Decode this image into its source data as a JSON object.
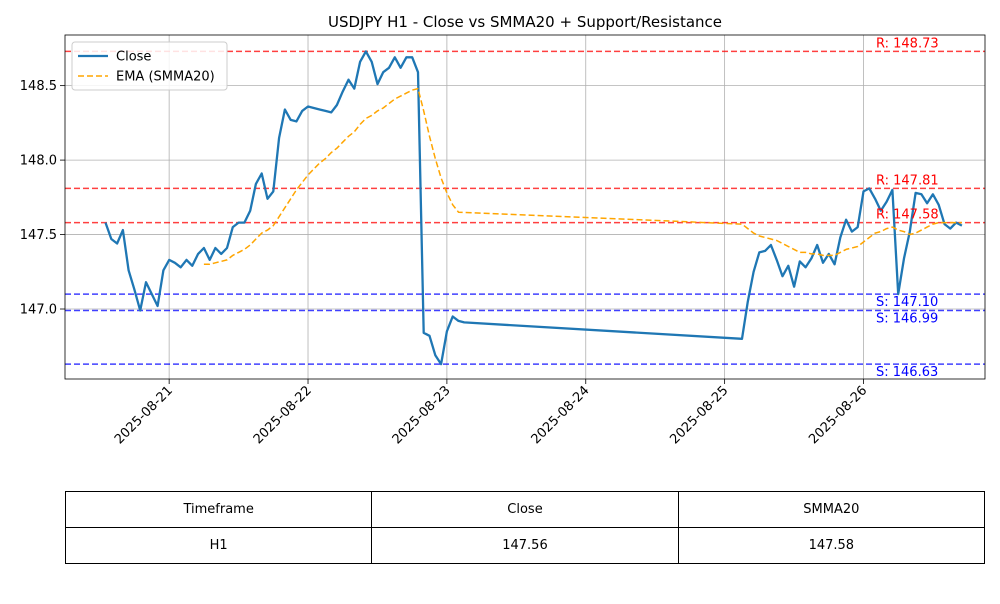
{
  "chart_data": {
    "type": "line",
    "title": "USDJPY H1 - Close vs SMMA20 + Support/Resistance",
    "xlabel": "",
    "ylabel": "",
    "x_ticks": [
      "2025-08-21",
      "2025-08-22",
      "2025-08-23",
      "2025-08-24",
      "2025-08-25",
      "2025-08-26"
    ],
    "y_ticks": [
      "147.0",
      "147.5",
      "148.0",
      "148.5"
    ],
    "xlim": [
      "2025-08-20 06:00",
      "2025-08-26 21:00"
    ],
    "ylim": [
      146.53,
      148.84
    ],
    "grid": true,
    "legend_position": "upper-left",
    "series": [
      {
        "name": "Close",
        "color": "#1f77b4",
        "style": "solid",
        "points": [
          [
            "2025-08-20 13:00",
            147.58
          ],
          [
            "2025-08-20 14:00",
            147.47
          ],
          [
            "2025-08-20 15:00",
            147.44
          ],
          [
            "2025-08-20 16:00",
            147.53
          ],
          [
            "2025-08-20 17:00",
            147.26
          ],
          [
            "2025-08-20 18:00",
            147.13
          ],
          [
            "2025-08-20 19:00",
            146.99
          ],
          [
            "2025-08-20 20:00",
            147.18
          ],
          [
            "2025-08-20 21:00",
            147.1
          ],
          [
            "2025-08-20 22:00",
            147.02
          ],
          [
            "2025-08-20 23:00",
            147.26
          ],
          [
            "2025-08-21 00:00",
            147.33
          ],
          [
            "2025-08-21 01:00",
            147.31
          ],
          [
            "2025-08-21 02:00",
            147.28
          ],
          [
            "2025-08-21 03:00",
            147.33
          ],
          [
            "2025-08-21 04:00",
            147.29
          ],
          [
            "2025-08-21 05:00",
            147.37
          ],
          [
            "2025-08-21 06:00",
            147.41
          ],
          [
            "2025-08-21 07:00",
            147.33
          ],
          [
            "2025-08-21 08:00",
            147.41
          ],
          [
            "2025-08-21 09:00",
            147.37
          ],
          [
            "2025-08-21 10:00",
            147.41
          ],
          [
            "2025-08-21 11:00",
            147.55
          ],
          [
            "2025-08-21 12:00",
            147.58
          ],
          [
            "2025-08-21 13:00",
            147.58
          ],
          [
            "2025-08-21 14:00",
            147.66
          ],
          [
            "2025-08-21 15:00",
            147.84
          ],
          [
            "2025-08-21 16:00",
            147.91
          ],
          [
            "2025-08-21 17:00",
            147.74
          ],
          [
            "2025-08-21 18:00",
            147.79
          ],
          [
            "2025-08-21 19:00",
            148.15
          ],
          [
            "2025-08-21 20:00",
            148.34
          ],
          [
            "2025-08-21 21:00",
            148.27
          ],
          [
            "2025-08-21 22:00",
            148.26
          ],
          [
            "2025-08-21 23:00",
            148.33
          ],
          [
            "2025-08-22 00:00",
            148.36
          ],
          [
            "2025-08-22 01:00",
            148.35
          ],
          [
            "2025-08-22 02:00",
            148.34
          ],
          [
            "2025-08-22 03:00",
            148.33
          ],
          [
            "2025-08-22 04:00",
            148.32
          ],
          [
            "2025-08-22 05:00",
            148.37
          ],
          [
            "2025-08-22 06:00",
            148.46
          ],
          [
            "2025-08-22 07:00",
            148.54
          ],
          [
            "2025-08-22 08:00",
            148.48
          ],
          [
            "2025-08-22 09:00",
            148.66
          ],
          [
            "2025-08-22 10:00",
            148.73
          ],
          [
            "2025-08-22 11:00",
            148.66
          ],
          [
            "2025-08-22 12:00",
            148.51
          ],
          [
            "2025-08-22 13:00",
            148.59
          ],
          [
            "2025-08-22 14:00",
            148.62
          ],
          [
            "2025-08-22 15:00",
            148.69
          ],
          [
            "2025-08-22 16:00",
            148.62
          ],
          [
            "2025-08-22 17:00",
            148.69
          ],
          [
            "2025-08-22 18:00",
            148.69
          ],
          [
            "2025-08-22 19:00",
            148.59
          ],
          [
            "2025-08-22 20:00",
            146.84
          ],
          [
            "2025-08-22 21:00",
            146.82
          ],
          [
            "2025-08-22 22:00",
            146.69
          ],
          [
            "2025-08-22 23:00",
            146.63
          ],
          [
            "2025-08-23 00:00",
            146.85
          ],
          [
            "2025-08-23 01:00",
            146.95
          ],
          [
            "2025-08-23 02:00",
            146.92
          ],
          [
            "2025-08-23 03:00",
            146.91
          ],
          [
            "2025-08-25 03:00",
            146.8
          ],
          [
            "2025-08-25 04:00",
            147.05
          ],
          [
            "2025-08-25 05:00",
            147.25
          ],
          [
            "2025-08-25 06:00",
            147.38
          ],
          [
            "2025-08-25 07:00",
            147.39
          ],
          [
            "2025-08-25 08:00",
            147.43
          ],
          [
            "2025-08-25 09:00",
            147.33
          ],
          [
            "2025-08-25 10:00",
            147.22
          ],
          [
            "2025-08-25 11:00",
            147.29
          ],
          [
            "2025-08-25 12:00",
            147.15
          ],
          [
            "2025-08-25 13:00",
            147.32
          ],
          [
            "2025-08-25 14:00",
            147.28
          ],
          [
            "2025-08-25 15:00",
            147.34
          ],
          [
            "2025-08-25 16:00",
            147.43
          ],
          [
            "2025-08-25 17:00",
            147.31
          ],
          [
            "2025-08-25 18:00",
            147.37
          ],
          [
            "2025-08-25 19:00",
            147.3
          ],
          [
            "2025-08-25 20:00",
            147.48
          ],
          [
            "2025-08-25 21:00",
            147.6
          ],
          [
            "2025-08-25 22:00",
            147.52
          ],
          [
            "2025-08-25 23:00",
            147.55
          ],
          [
            "2025-08-26 00:00",
            147.79
          ],
          [
            "2025-08-26 01:00",
            147.81
          ],
          [
            "2025-08-26 02:00",
            147.74
          ],
          [
            "2025-08-26 03:00",
            147.66
          ],
          [
            "2025-08-26 04:00",
            147.72
          ],
          [
            "2025-08-26 05:00",
            147.8
          ],
          [
            "2025-08-26 06:00",
            147.1
          ],
          [
            "2025-08-26 07:00",
            147.34
          ],
          [
            "2025-08-26 08:00",
            147.52
          ],
          [
            "2025-08-26 09:00",
            147.78
          ],
          [
            "2025-08-26 10:00",
            147.77
          ],
          [
            "2025-08-26 11:00",
            147.71
          ],
          [
            "2025-08-26 12:00",
            147.77
          ],
          [
            "2025-08-26 13:00",
            147.7
          ],
          [
            "2025-08-26 14:00",
            147.57
          ],
          [
            "2025-08-26 15:00",
            147.54
          ],
          [
            "2025-08-26 16:00",
            147.58
          ],
          [
            "2025-08-26 17:00",
            147.56
          ]
        ]
      },
      {
        "name": "EMA (SMMA20)",
        "color": "#ffa500",
        "style": "dashed",
        "points": [
          [
            "2025-08-21 06:00",
            147.3
          ],
          [
            "2025-08-21 07:00",
            147.3
          ],
          [
            "2025-08-21 08:00",
            147.31
          ],
          [
            "2025-08-21 09:00",
            147.32
          ],
          [
            "2025-08-21 10:00",
            147.33
          ],
          [
            "2025-08-21 11:00",
            147.36
          ],
          [
            "2025-08-21 12:00",
            147.38
          ],
          [
            "2025-08-21 13:00",
            147.4
          ],
          [
            "2025-08-21 14:00",
            147.43
          ],
          [
            "2025-08-21 15:00",
            147.47
          ],
          [
            "2025-08-21 16:00",
            147.51
          ],
          [
            "2025-08-21 17:00",
            147.53
          ],
          [
            "2025-08-21 18:00",
            147.56
          ],
          [
            "2025-08-21 19:00",
            147.62
          ],
          [
            "2025-08-21 20:00",
            147.68
          ],
          [
            "2025-08-21 21:00",
            147.74
          ],
          [
            "2025-08-21 22:00",
            147.8
          ],
          [
            "2025-08-21 23:00",
            147.85
          ],
          [
            "2025-08-22 00:00",
            147.9
          ],
          [
            "2025-08-22 01:00",
            147.94
          ],
          [
            "2025-08-22 02:00",
            147.98
          ],
          [
            "2025-08-22 03:00",
            148.01
          ],
          [
            "2025-08-22 04:00",
            148.05
          ],
          [
            "2025-08-22 05:00",
            148.08
          ],
          [
            "2025-08-22 06:00",
            148.12
          ],
          [
            "2025-08-22 07:00",
            148.16
          ],
          [
            "2025-08-22 08:00",
            148.19
          ],
          [
            "2025-08-22 09:00",
            148.24
          ],
          [
            "2025-08-22 10:00",
            148.28
          ],
          [
            "2025-08-22 11:00",
            148.3
          ],
          [
            "2025-08-22 12:00",
            148.33
          ],
          [
            "2025-08-22 13:00",
            148.35
          ],
          [
            "2025-08-22 14:00",
            148.38
          ],
          [
            "2025-08-22 15:00",
            148.41
          ],
          [
            "2025-08-22 16:00",
            148.43
          ],
          [
            "2025-08-22 17:00",
            148.45
          ],
          [
            "2025-08-22 18:00",
            148.47
          ],
          [
            "2025-08-22 19:00",
            148.48
          ],
          [
            "2025-08-22 20:00",
            148.33
          ],
          [
            "2025-08-22 21:00",
            148.16
          ],
          [
            "2025-08-22 22:00",
            148.01
          ],
          [
            "2025-08-22 23:00",
            147.88
          ],
          [
            "2025-08-23 00:00",
            147.78
          ],
          [
            "2025-08-23 01:00",
            147.7
          ],
          [
            "2025-08-23 02:00",
            147.65
          ],
          [
            "2025-08-25 03:00",
            147.57
          ],
          [
            "2025-08-25 04:00",
            147.54
          ],
          [
            "2025-08-25 05:00",
            147.51
          ],
          [
            "2025-08-25 06:00",
            147.49
          ],
          [
            "2025-08-25 07:00",
            147.48
          ],
          [
            "2025-08-25 08:00",
            147.47
          ],
          [
            "2025-08-25 09:00",
            147.46
          ],
          [
            "2025-08-25 10:00",
            147.44
          ],
          [
            "2025-08-25 11:00",
            147.42
          ],
          [
            "2025-08-25 12:00",
            147.4
          ],
          [
            "2025-08-25 13:00",
            147.38
          ],
          [
            "2025-08-25 14:00",
            147.38
          ],
          [
            "2025-08-25 15:00",
            147.37
          ],
          [
            "2025-08-25 16:00",
            147.37
          ],
          [
            "2025-08-25 17:00",
            147.36
          ],
          [
            "2025-08-25 18:00",
            147.36
          ],
          [
            "2025-08-25 19:00",
            147.36
          ],
          [
            "2025-08-25 20:00",
            147.38
          ],
          [
            "2025-08-25 21:00",
            147.4
          ],
          [
            "2025-08-25 22:00",
            147.41
          ],
          [
            "2025-08-25 23:00",
            147.42
          ],
          [
            "2025-08-26 00:00",
            147.45
          ],
          [
            "2025-08-26 01:00",
            147.48
          ],
          [
            "2025-08-26 02:00",
            147.51
          ],
          [
            "2025-08-26 03:00",
            147.52
          ],
          [
            "2025-08-26 04:00",
            147.54
          ],
          [
            "2025-08-26 05:00",
            147.55
          ],
          [
            "2025-08-26 06:00",
            147.53
          ],
          [
            "2025-08-26 07:00",
            147.52
          ],
          [
            "2025-08-26 08:00",
            147.5
          ],
          [
            "2025-08-26 09:00",
            147.51
          ],
          [
            "2025-08-26 10:00",
            147.53
          ],
          [
            "2025-08-26 11:00",
            147.55
          ],
          [
            "2025-08-26 12:00",
            147.57
          ],
          [
            "2025-08-26 13:00",
            147.58
          ],
          [
            "2025-08-26 14:00",
            147.58
          ],
          [
            "2025-08-26 15:00",
            147.58
          ],
          [
            "2025-08-26 16:00",
            147.58
          ],
          [
            "2025-08-26 17:00",
            147.58
          ]
        ]
      }
    ],
    "levels": [
      {
        "kind": "resistance",
        "value": 148.73,
        "label": "R: 148.73",
        "color": "#ff0000"
      },
      {
        "kind": "resistance",
        "value": 147.81,
        "label": "R: 147.81",
        "color": "#ff0000"
      },
      {
        "kind": "resistance",
        "value": 147.58,
        "label": "R: 147.58",
        "color": "#ff0000"
      },
      {
        "kind": "support",
        "value": 147.1,
        "label": "S: 147.10",
        "color": "#0000ff"
      },
      {
        "kind": "support",
        "value": 146.99,
        "label": "S: 146.99",
        "color": "#0000ff"
      },
      {
        "kind": "support",
        "value": 146.63,
        "label": "S: 146.63",
        "color": "#0000ff"
      }
    ]
  },
  "table": {
    "headers": [
      "Timeframe",
      "Close",
      "SMMA20"
    ],
    "rows": [
      [
        "H1",
        "147.56",
        "147.58"
      ]
    ]
  }
}
